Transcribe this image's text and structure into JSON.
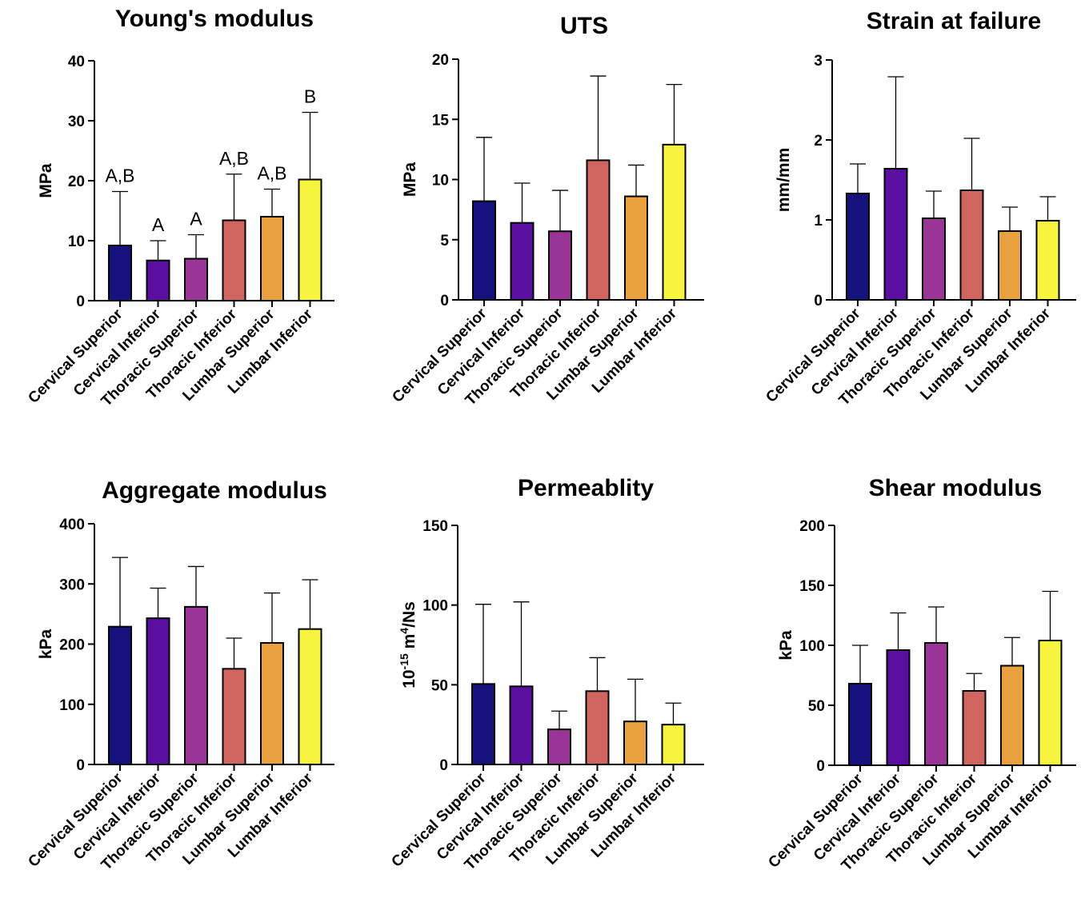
{
  "categories": [
    "Cervical Superior",
    "Cervical Inferior",
    "Thoracic Superior",
    "Thoracic Inferior",
    "Lumbar Superior",
    "Lumbar Inferior"
  ],
  "colors": [
    "#15127e",
    "#5a0fa0",
    "#9a3496",
    "#d0655f",
    "#e9a03e",
    "#f6f43e"
  ],
  "chart_data": [
    {
      "type": "bar",
      "title": "Young's modulus",
      "ylabel": "MPa",
      "ylim": [
        0,
        40
      ],
      "yticks": [
        0,
        10,
        20,
        30,
        40
      ],
      "categories": [
        "Cervical Superior",
        "Cervical Inferior",
        "Thoracic Superior",
        "Thoracic Inferior",
        "Lumbar Superior",
        "Lumbar Inferior"
      ],
      "values": [
        9.2,
        6.7,
        7.0,
        13.4,
        14.0,
        20.2
      ],
      "errors": [
        9.0,
        3.3,
        4.0,
        7.7,
        4.6,
        11.2
      ],
      "annotations": [
        "A,B",
        "A",
        "A",
        "A,B",
        "A,B",
        "B"
      ]
    },
    {
      "type": "bar",
      "title": "UTS",
      "ylabel": "MPa",
      "ylim": [
        0,
        20
      ],
      "yticks": [
        0,
        5,
        10,
        15,
        20
      ],
      "categories": [
        "Cervical Superior",
        "Cervical Inferior",
        "Thoracic Superior",
        "Thoracic Inferior",
        "Lumbar Superior",
        "Lumbar Inferior"
      ],
      "values": [
        8.2,
        6.4,
        5.7,
        11.6,
        8.6,
        12.9
      ],
      "errors": [
        5.3,
        3.3,
        3.4,
        7.0,
        2.6,
        5.0
      ]
    },
    {
      "type": "bar",
      "title": "Strain at failure",
      "ylabel": "mm/mm",
      "ylim": [
        0,
        3
      ],
      "yticks": [
        0,
        1,
        2,
        3
      ],
      "categories": [
        "Cervical Superior",
        "Cervical Inferior",
        "Thoracic Superior",
        "Thoracic Inferior",
        "Lumbar Superior",
        "Lumbar Inferior"
      ],
      "values": [
        1.33,
        1.64,
        1.02,
        1.37,
        0.86,
        0.99
      ],
      "errors": [
        0.37,
        1.15,
        0.34,
        0.65,
        0.3,
        0.3
      ]
    },
    {
      "type": "bar",
      "title": "Aggregate modulus",
      "ylabel": "kPa",
      "ylim": [
        0,
        400
      ],
      "yticks": [
        0,
        100,
        200,
        300,
        400
      ],
      "categories": [
        "Cervical Superior",
        "Cervical Inferior",
        "Thoracic Superior",
        "Thoracic Inferior",
        "Lumbar Superior",
        "Lumbar Inferior"
      ],
      "values": [
        229,
        243,
        262,
        159,
        202,
        225
      ],
      "errors": [
        115,
        50,
        67,
        51,
        83,
        82
      ]
    },
    {
      "type": "bar",
      "title": "Permeablity",
      "ylabel": "10^-15 m^4/Ns",
      "ylabel_parts": [
        "10",
        "-15",
        " m",
        "4",
        "/Ns"
      ],
      "ylim": [
        0,
        150
      ],
      "yticks": [
        0,
        50,
        100,
        150
      ],
      "categories": [
        "Cervical Superior",
        "Cervical Inferior",
        "Thoracic Superior",
        "Thoracic Inferior",
        "Lumbar Superior",
        "Lumbar Inferior"
      ],
      "values": [
        50.5,
        49,
        22,
        46,
        27,
        25
      ],
      "errors": [
        50,
        53,
        11.5,
        21,
        26.5,
        13.5
      ]
    },
    {
      "type": "bar",
      "title": "Shear modulus",
      "ylabel": "kPa",
      "ylim": [
        0,
        200
      ],
      "yticks": [
        0,
        50,
        100,
        150,
        200
      ],
      "categories": [
        "Cervical Superior",
        "Cervical Inferior",
        "Thoracic Superior",
        "Thoracic Inferior",
        "Lumbar Superior",
        "Lumbar Inferior"
      ],
      "values": [
        68,
        96,
        102,
        62,
        83,
        104
      ],
      "errors": [
        32,
        31,
        30,
        14.5,
        23.5,
        41
      ]
    }
  ]
}
